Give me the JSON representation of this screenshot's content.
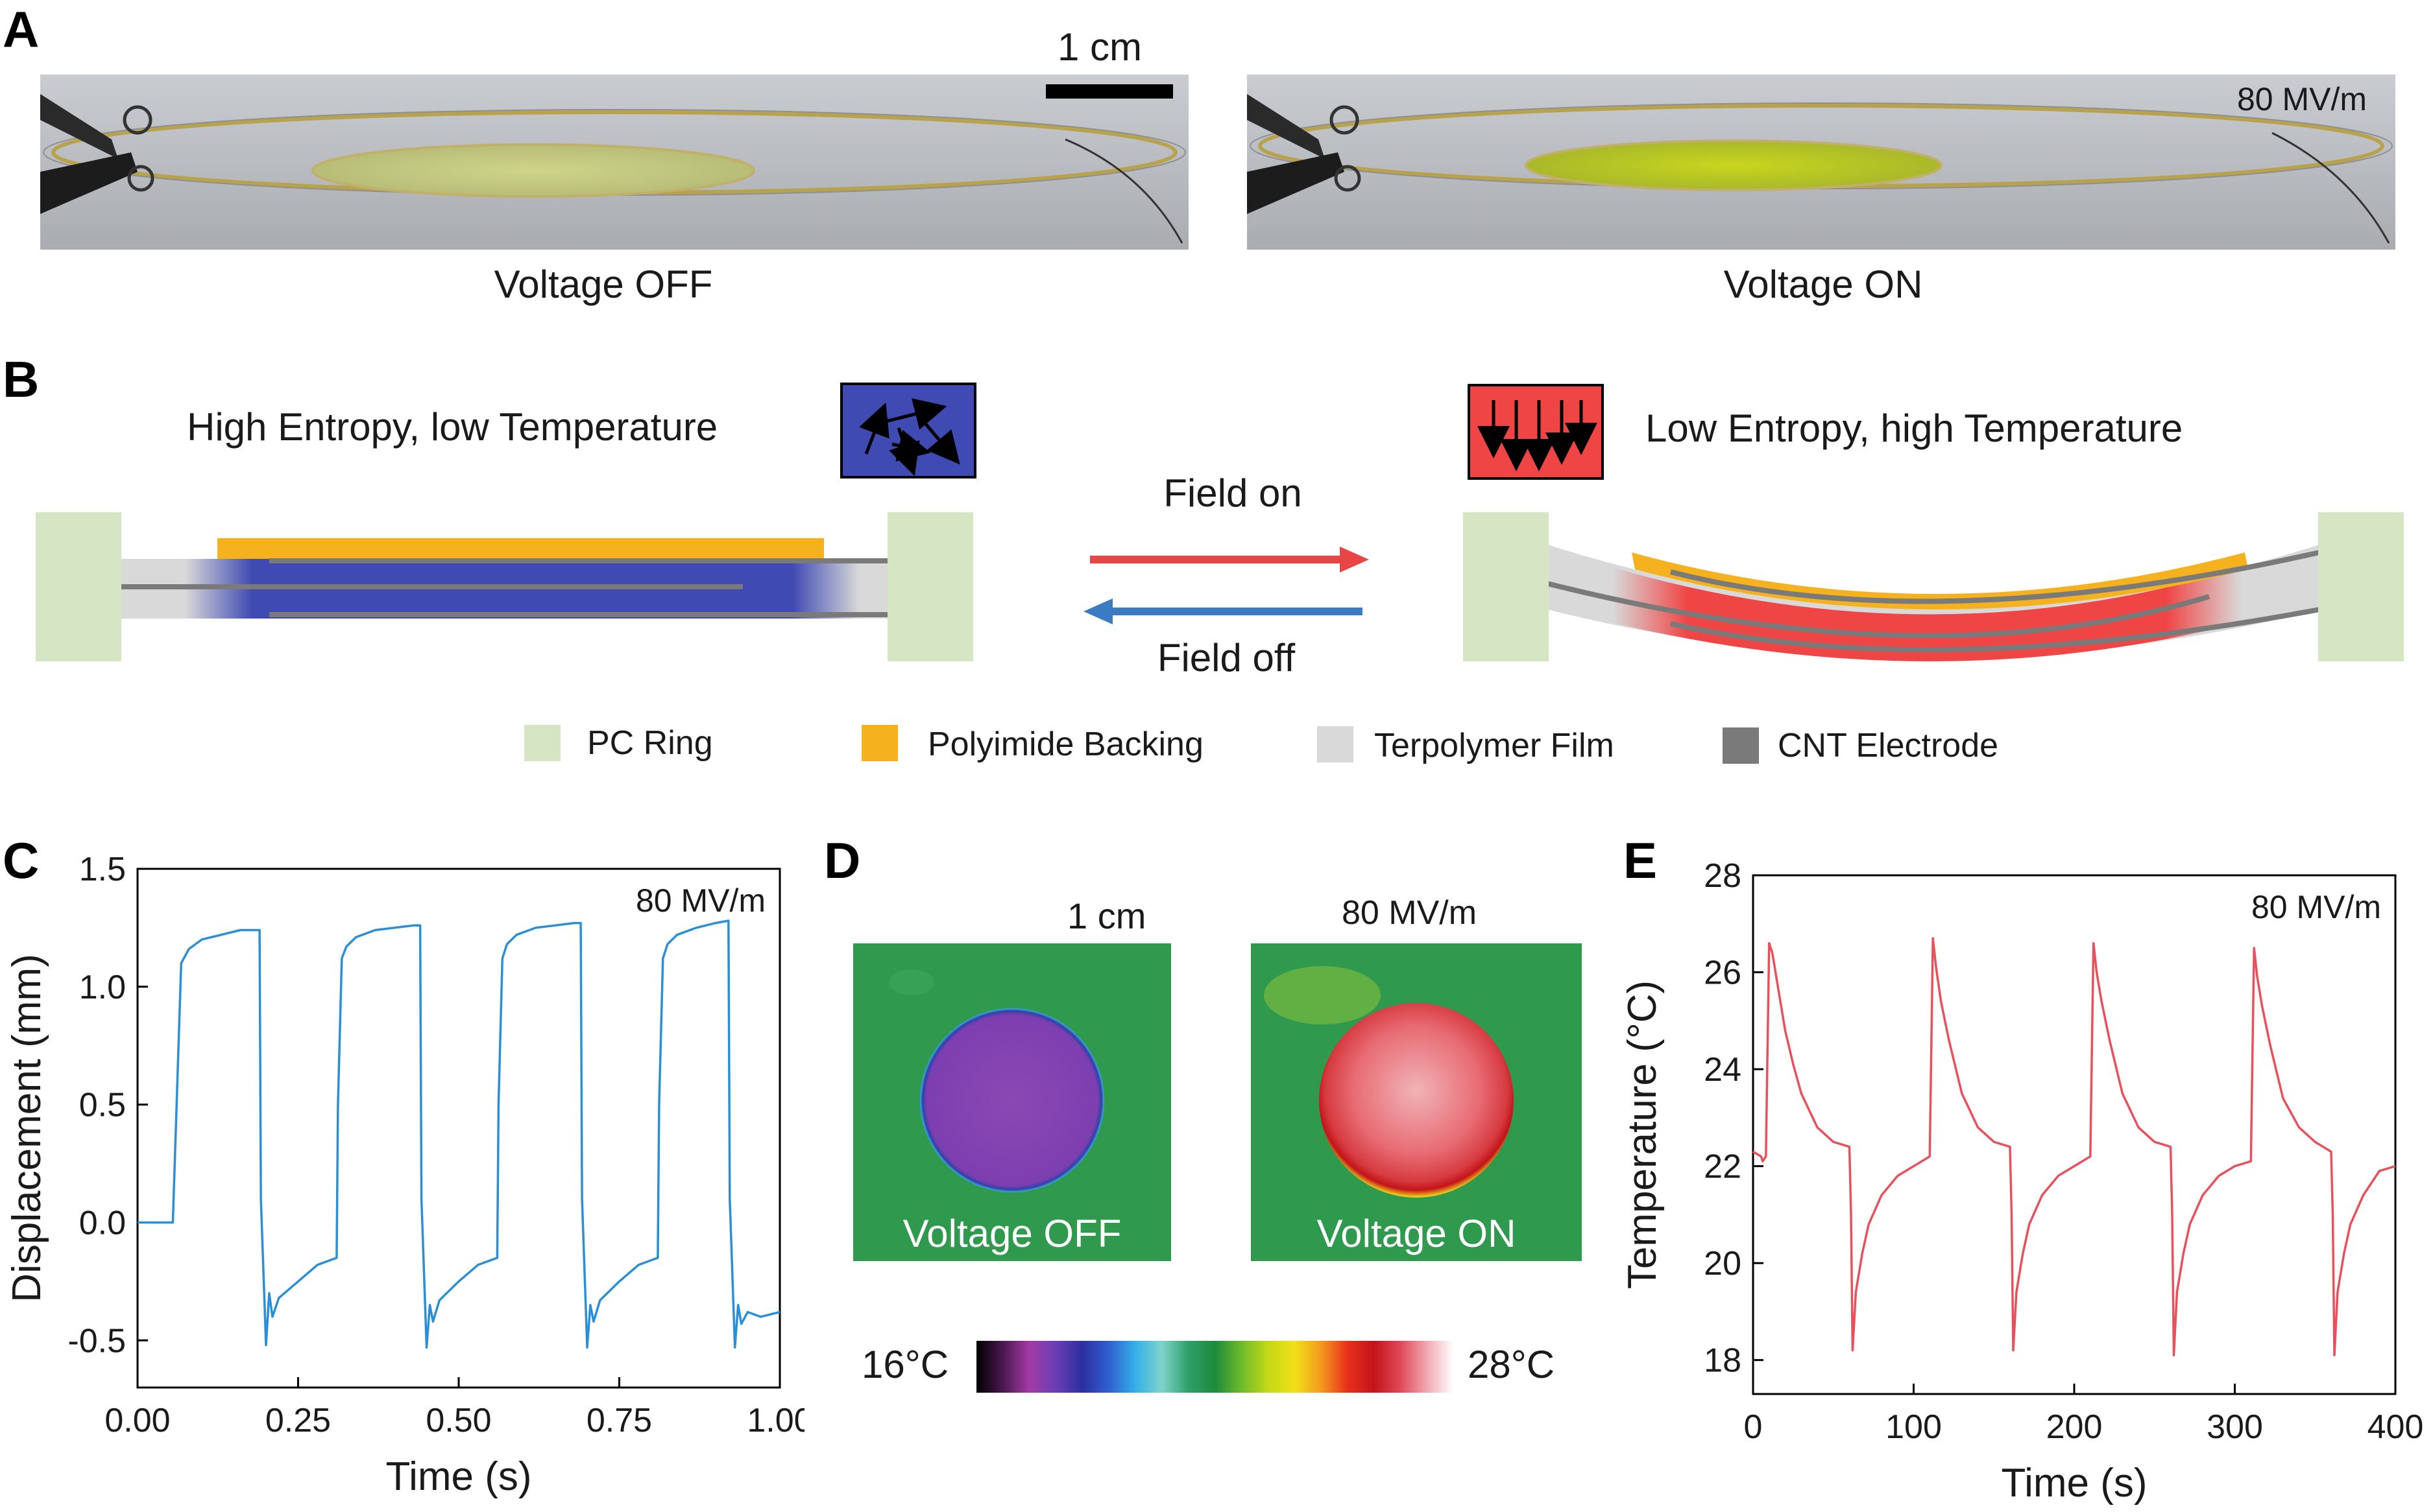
{
  "panels": {
    "A": {
      "letter": "A",
      "scale_bar": "1 cm",
      "field_label": "80 MV/m",
      "left_caption": "Voltage OFF",
      "right_caption": "Voltage ON"
    },
    "B": {
      "letter": "B",
      "left_title": "High Entropy, low Temperature",
      "right_title": "Low Entropy, high Temperature",
      "field_on": "Field on",
      "field_off": "Field off",
      "legend": [
        {
          "label": "PC Ring",
          "color": "#d6e6c4"
        },
        {
          "label": "Polyimide Backing",
          "color": "#f5b21e"
        },
        {
          "label": "Terpolymer Film",
          "color": "#d9d9d9"
        },
        {
          "label": "CNT Electrode",
          "color": "#7a7a7a"
        }
      ],
      "colors": {
        "cold": "#3f4ab2",
        "hot": "#f04545",
        "arrow_on": "#e84545",
        "arrow_off": "#3a7cc4"
      }
    },
    "C": {
      "letter": "C",
      "annotation": "80 MV/m",
      "color": "#2a8fd6"
    },
    "D": {
      "letter": "D",
      "scale_bar": "1 cm",
      "field_label": "80 MV/m",
      "left_caption": "Voltage OFF",
      "right_caption": "Voltage ON",
      "colorbar_min": "16°C",
      "colorbar_max": "28°C"
    },
    "E": {
      "letter": "E",
      "annotation": "80 MV/m",
      "color": "#e8505b"
    }
  },
  "chart_data": [
    {
      "panel": "C",
      "type": "line",
      "xlabel": "Time (s)",
      "ylabel": "Displacement (mm)",
      "xlim": [
        0,
        1
      ],
      "ylim": [
        -0.7,
        1.5
      ],
      "xticks": [
        "0.00",
        "0.25",
        "0.50",
        "0.75",
        "1.00"
      ],
      "xtick_values": [
        0,
        0.25,
        0.5,
        0.75,
        1.0
      ],
      "yticks": [
        "-0.5",
        "0.0",
        "0.5",
        "1.0",
        "1.5"
      ],
      "ytick_values": [
        -0.5,
        0,
        0.5,
        1.0,
        1.5
      ],
      "series": [
        {
          "x": [
            0,
            0.055,
            0.062,
            0.068,
            0.08,
            0.1,
            0.13,
            0.16,
            0.19,
            0.192,
            0.2,
            0.205,
            0.21,
            0.22,
            0.25,
            0.28,
            0.31,
            0.312,
            0.318,
            0.325,
            0.34,
            0.37,
            0.4,
            0.43,
            0.44,
            0.442,
            0.45,
            0.455,
            0.46,
            0.47,
            0.5,
            0.53,
            0.56,
            0.562,
            0.568,
            0.575,
            0.59,
            0.62,
            0.65,
            0.68,
            0.69,
            0.692,
            0.7,
            0.705,
            0.71,
            0.72,
            0.75,
            0.78,
            0.81,
            0.812,
            0.818,
            0.825,
            0.84,
            0.87,
            0.9,
            0.92,
            0.922,
            0.93,
            0.935,
            0.94,
            0.95,
            0.97,
            1.0
          ],
          "y": [
            0,
            0,
            0.6,
            1.1,
            1.16,
            1.2,
            1.22,
            1.24,
            1.24,
            0.1,
            -0.52,
            -0.3,
            -0.4,
            -0.32,
            -0.25,
            -0.18,
            -0.15,
            0.5,
            1.12,
            1.17,
            1.21,
            1.24,
            1.25,
            1.26,
            1.26,
            0.1,
            -0.53,
            -0.35,
            -0.42,
            -0.33,
            -0.25,
            -0.18,
            -0.15,
            0.5,
            1.12,
            1.18,
            1.22,
            1.25,
            1.26,
            1.27,
            1.27,
            0.1,
            -0.53,
            -0.35,
            -0.42,
            -0.33,
            -0.25,
            -0.18,
            -0.15,
            0.5,
            1.12,
            1.18,
            1.22,
            1.25,
            1.27,
            1.28,
            0.1,
            -0.53,
            -0.35,
            -0.43,
            -0.38,
            -0.4,
            -0.38
          ]
        }
      ]
    },
    {
      "panel": "E",
      "type": "line",
      "xlabel": "Time (s)",
      "ylabel": "Temperature (°C)",
      "xlim": [
        0,
        400
      ],
      "ylim": [
        17.3,
        28
      ],
      "xticks": [
        "0",
        "100",
        "200",
        "300",
        "400"
      ],
      "xtick_values": [
        0,
        100,
        200,
        300,
        400
      ],
      "yticks": [
        "18",
        "20",
        "22",
        "24",
        "26",
        "28"
      ],
      "ytick_values": [
        18,
        20,
        22,
        24,
        26,
        28
      ],
      "series": [
        {
          "x": [
            0,
            5,
            6,
            8,
            10,
            12,
            15,
            20,
            25,
            30,
            40,
            50,
            60,
            61,
            62,
            64,
            68,
            72,
            80,
            90,
            100,
            110,
            112,
            114,
            117,
            122,
            130,
            140,
            150,
            160,
            161,
            162,
            164,
            168,
            172,
            180,
            190,
            200,
            210,
            212,
            214,
            217,
            222,
            230,
            240,
            250,
            260,
            261,
            262,
            264,
            268,
            272,
            280,
            290,
            300,
            310,
            312,
            314,
            317,
            322,
            330,
            340,
            350,
            360,
            361,
            362,
            364,
            368,
            372,
            380,
            390,
            400
          ],
          "y": [
            22.3,
            22.2,
            22.1,
            22.2,
            26.6,
            26.4,
            25.8,
            24.8,
            24.1,
            23.5,
            22.8,
            22.5,
            22.4,
            21.0,
            18.2,
            19.4,
            20.2,
            20.8,
            21.4,
            21.8,
            22.0,
            22.2,
            26.7,
            26.1,
            25.4,
            24.6,
            23.5,
            22.8,
            22.5,
            22.4,
            21.0,
            18.2,
            19.4,
            20.2,
            20.8,
            21.4,
            21.8,
            22.0,
            22.2,
            26.6,
            26.0,
            25.4,
            24.6,
            23.5,
            22.8,
            22.5,
            22.4,
            21.0,
            18.1,
            19.4,
            20.2,
            20.8,
            21.4,
            21.8,
            22.0,
            22.1,
            26.5,
            25.9,
            25.3,
            24.5,
            23.4,
            22.8,
            22.5,
            22.3,
            21.0,
            18.1,
            19.4,
            20.2,
            20.8,
            21.4,
            21.9,
            22.0
          ]
        }
      ]
    },
    {
      "panel": "D",
      "type": "heatmap",
      "colorbar": [
        "#000000",
        "#4b1850",
        "#a43aa5",
        "#6a3fb5",
        "#2d2fa0",
        "#2f5fd0",
        "#35b0e6",
        "#7fd3cc",
        "#2f9f6a",
        "#1e8a3c",
        "#6dbb2a",
        "#c4d818",
        "#f2e118",
        "#f39a1c",
        "#e8301c",
        "#c2141a",
        "#e04858",
        "#f0a8b0",
        "#ffffff"
      ]
    }
  ]
}
